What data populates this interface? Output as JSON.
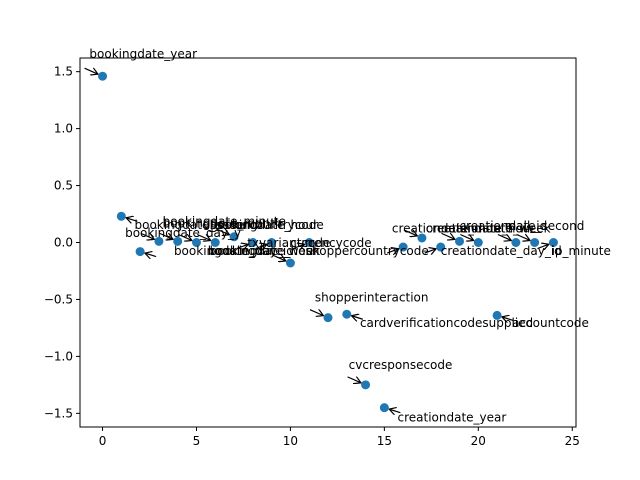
{
  "chart_data": {
    "type": "scatter",
    "title": "",
    "xlabel": "",
    "ylabel": "",
    "xlim": [
      -1.2,
      25.2
    ],
    "ylim": [
      -1.62,
      1.62
    ],
    "xticks": [
      0,
      5,
      10,
      15,
      20,
      25
    ],
    "yticks": [
      -1.5,
      -1.0,
      -0.5,
      0.0,
      0.5,
      1.0,
      1.5
    ],
    "xtick_labels": [
      "0",
      "5",
      "10",
      "15",
      "20",
      "25"
    ],
    "ytick_labels": [
      "−1.5",
      "−1.0",
      "−0.5",
      "0.0",
      "0.5",
      "1.0",
      "1.5"
    ],
    "grid": false,
    "marker_color": "#1f77b4",
    "points": [
      {
        "x": 0,
        "y": 1.46,
        "label": "bookingdate_year",
        "tx": -0.7,
        "ty": 1.62
      },
      {
        "x": 1,
        "y": 0.23,
        "label": "bookingdate_second",
        "tx": 1.7,
        "ty": 0.12
      },
      {
        "x": 2,
        "y": -0.08,
        "label": "bookingdate_day_id",
        "tx": 3.8,
        "ty": -0.11
      },
      {
        "x": 3,
        "y": 0.01,
        "label": "bookingdate_day_y",
        "tx": 1.2,
        "ty": 0.05
      },
      {
        "x": 4,
        "y": 0.01,
        "label": "bookingdate_month",
        "tx": 3.2,
        "ty": 0.13
      },
      {
        "x": 5,
        "y": 0.0,
        "label": "bookingdate_minute",
        "tx": 3.2,
        "ty": 0.15
      },
      {
        "x": 6,
        "y": 0.0,
        "label": "bookingdate_hour",
        "tx": 5.7,
        "ty": 0.12
      },
      {
        "x": 7,
        "y": 0.05,
        "label": "issuercountrycode",
        "tx": 5.9,
        "ty": 0.12
      },
      {
        "x": 8,
        "y": 0.0,
        "label": "txvariantcode",
        "tx": 7.7,
        "ty": -0.04
      },
      {
        "x": 9,
        "y": 0.0,
        "label": "bookingdate_week",
        "tx": 5.6,
        "ty": -0.11
      },
      {
        "x": 10,
        "y": -0.18,
        "label": "bookingdate_hour",
        "tx": 5.7,
        "ty": -0.11
      },
      {
        "x": 11,
        "y": 0.0,
        "label": "currencycode",
        "tx": 10.0,
        "ty": -0.04
      },
      {
        "x": 12,
        "y": -0.66,
        "label": "shopperinteraction",
        "tx": 11.3,
        "ty": -0.52
      },
      {
        "x": 13,
        "y": -0.63,
        "label": "cardverificationcodesupplied",
        "tx": 13.7,
        "ty": -0.74
      },
      {
        "x": 14,
        "y": -1.25,
        "label": "cvcresponsecode",
        "tx": 13.1,
        "ty": -1.11
      },
      {
        "x": 15,
        "y": -1.45,
        "label": "creationdate_year",
        "tx": 15.7,
        "ty": -1.57
      },
      {
        "x": 16,
        "y": -0.04,
        "label": "shoppercountrycode",
        "tx": 10.8,
        "ty": -0.11
      },
      {
        "x": 17,
        "y": 0.04,
        "label": "creationdate_month",
        "tx": 15.4,
        "ty": 0.09
      },
      {
        "x": 18,
        "y": -0.04,
        "label": "creationdate_day_id",
        "tx": 18.0,
        "ty": -0.11
      },
      {
        "x": 19,
        "y": 0.01,
        "label": "creationdate_hour",
        "tx": 17.2,
        "ty": 0.09
      },
      {
        "x": 20,
        "y": 0.0,
        "label": "creationdate_week",
        "tx": 17.8,
        "ty": 0.09
      },
      {
        "x": 21,
        "y": -0.64,
        "label": "accountcode",
        "tx": 21.8,
        "ty": -0.74
      },
      {
        "x": 22,
        "y": 0.0,
        "label": "mail_id",
        "tx": 21.4,
        "ty": 0.11
      },
      {
        "x": 23,
        "y": 0.0,
        "label": "creationdate_second",
        "tx": 19.0,
        "ty": 0.11
      },
      {
        "x": 24,
        "y": 0.0,
        "label": "ip_minute",
        "tx": 23.9,
        "ty": -0.11
      }
    ]
  }
}
